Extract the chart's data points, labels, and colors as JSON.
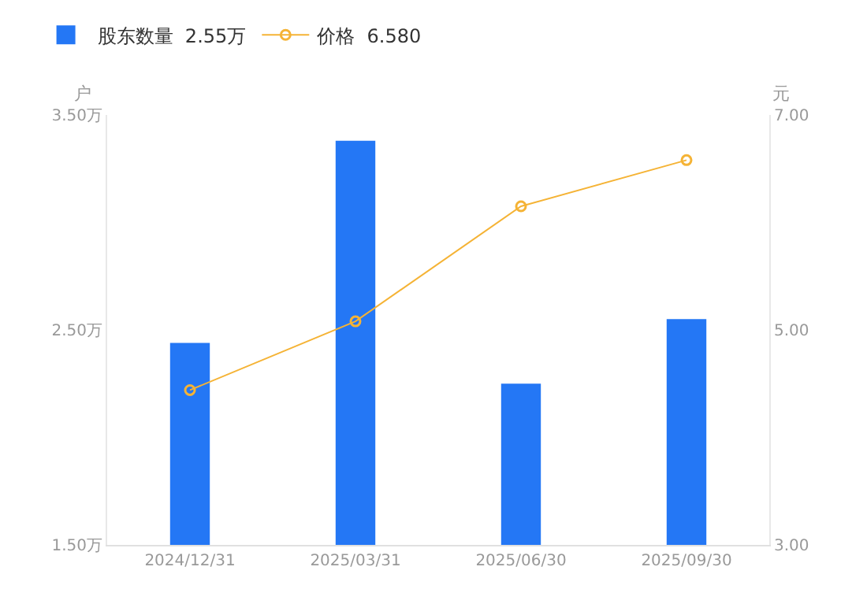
{
  "chart_data": {
    "type": "bar",
    "categories": [
      "2024/12/31",
      "2025/03/31",
      "2025/06/30",
      "2025/09/30"
    ],
    "series": [
      {
        "name": "股东数量  2.55万",
        "color": "#2477f5",
        "values": [
          2.44,
          3.38,
          2.25,
          2.55
        ]
      },
      {
        "name": "价格  6.580",
        "type": "line",
        "axis": "y2",
        "color": "#f5b335",
        "values": [
          4.44,
          5.08,
          6.15,
          6.58
        ]
      }
    ],
    "ylabel": "户",
    "y2label": "元",
    "ylim": [
      1.5,
      3.5
    ],
    "yticks": [
      {
        "value": 1.5,
        "label": "1.50万"
      },
      {
        "value": 2.5,
        "label": "2.50万"
      },
      {
        "value": 3.5,
        "label": "3.50万"
      }
    ],
    "y2lim": [
      3,
      7
    ],
    "y2ticks": [
      {
        "value": 3,
        "label": "3.00"
      },
      {
        "value": 5,
        "label": "5.00"
      },
      {
        "value": 7,
        "label": "7.00"
      }
    ],
    "legend": "top left",
    "marker": "circle",
    "line_style": "solid",
    "grid": false
  }
}
